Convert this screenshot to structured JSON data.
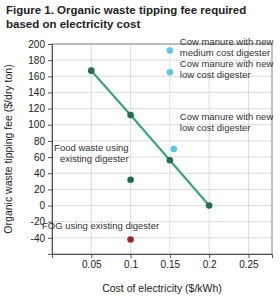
{
  "chart_data": {
    "type": "line",
    "title": "Figure 1. Organic waste tipping fee required based on electricity cost",
    "x_label": "Cost of electricity ($/kWh)",
    "y_label": "Organic waste tipping fee ($/dry ton)",
    "xlim": [
      0,
      0.28
    ],
    "xticks": [
      0.05,
      0.1,
      0.15,
      0.2,
      0.25
    ],
    "ylim": [
      -60,
      200
    ],
    "yticks": [
      -40,
      -20,
      0,
      20,
      40,
      60,
      80,
      100,
      120,
      140,
      160,
      180,
      200
    ],
    "grid": true,
    "series": [
      {
        "type": "line",
        "color": "#3aa57a",
        "marker": "circle",
        "x": [
          0.05,
          0.1,
          0.15,
          0.2
        ],
        "values": [
          167,
          112,
          56,
          0
        ]
      },
      {
        "type": "scatter",
        "name": "Cow manure with new medium cost digester",
        "color": "#5bc8e8",
        "marker": "circle",
        "x": [
          0.15
        ],
        "values": [
          192
        ]
      },
      {
        "type": "scatter",
        "name": "Cow manure with new low cost digester",
        "color": "#5bc8e8",
        "marker": "circle",
        "x": [
          0.15
        ],
        "values": [
          165
        ]
      },
      {
        "type": "scatter",
        "name": "Cow manure with new low cost digester",
        "color": "#5bc8e8",
        "marker": "circle",
        "x": [
          0.155
        ],
        "values": [
          70
        ]
      },
      {
        "type": "scatter",
        "name": "Food waste using existing digester",
        "color": "#1e6b48",
        "marker": "circle",
        "x": [
          0.1
        ],
        "values": [
          32
        ]
      },
      {
        "type": "scatter",
        "name": "FOG using existing digester",
        "color": "#9b2a1f",
        "marker": "circle",
        "x": [
          0.1
        ],
        "values": [
          -42
        ]
      }
    ]
  }
}
